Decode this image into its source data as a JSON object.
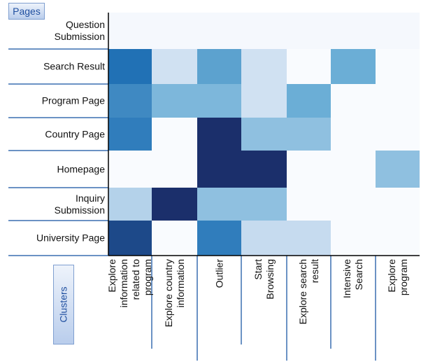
{
  "chart_data": {
    "type": "heatmap",
    "row_axis_label": "Pages",
    "column_axis_label": "Clusters",
    "rows": [
      "Question\nSubmission",
      "Search Result",
      "Program Page",
      "Country Page",
      "Homepage",
      "Inquiry\nSubmission",
      "University Page"
    ],
    "columns": [
      "Explore\ninformation\nrelated to\nprogram",
      "Explore country\ninformation",
      "Outlier",
      "Start\nBrowsing",
      "Explore search\nresult",
      "Intensive\nSearch",
      "Explore\nprogram"
    ],
    "values": [
      [
        0.02,
        0.02,
        0.02,
        0.02,
        0.02,
        0.02,
        0.02
      ],
      [
        0.75,
        0.2,
        0.55,
        0.2,
        0,
        0.5,
        0
      ],
      [
        0.65,
        0.45,
        0.45,
        0.2,
        0.5,
        0,
        0
      ],
      [
        0.7,
        0,
        1,
        0.4,
        0.4,
        0,
        0
      ],
      [
        0,
        0,
        1,
        1,
        0,
        0,
        0.4
      ],
      [
        0.3,
        1,
        0.4,
        0.4,
        0,
        0,
        0
      ],
      [
        0.9,
        0,
        0.7,
        0.25,
        0.25,
        0,
        0
      ]
    ],
    "zlim": [
      0,
      1
    ],
    "colors": [
      "#f9fbfe",
      "#c6dbef",
      "#6baed6",
      "#2171b5",
      "#1b2f6b"
    ]
  }
}
